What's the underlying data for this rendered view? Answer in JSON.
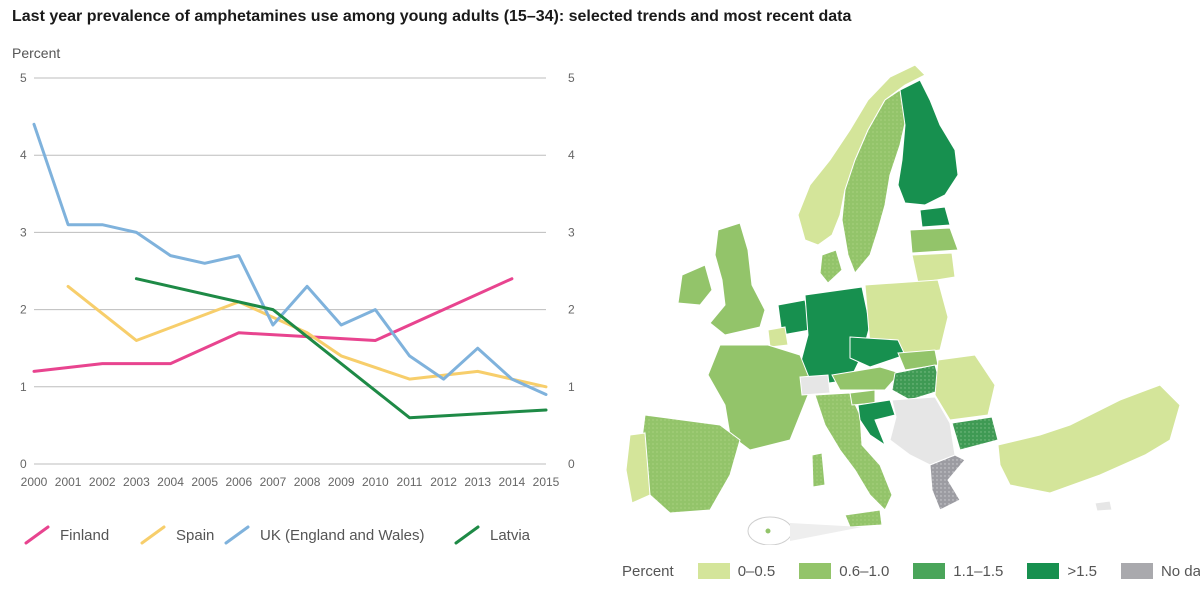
{
  "title": "Last year prevalence of amphetamines use among young adults (15–34): selected trends and most recent data",
  "chart_data": {
    "type": "line",
    "ylabel": "Percent",
    "ylim": [
      0,
      5
    ],
    "yticks": [
      0,
      1,
      2,
      3,
      4,
      5
    ],
    "x": [
      2000,
      2001,
      2002,
      2003,
      2004,
      2005,
      2006,
      2007,
      2008,
      2009,
      2010,
      2011,
      2012,
      2013,
      2014,
      2015
    ],
    "grid": true,
    "legend_position": "bottom",
    "series": [
      {
        "name": "Finland",
        "color": "#e8448f",
        "points": [
          [
            2000,
            1.2
          ],
          [
            2002,
            1.3
          ],
          [
            2004,
            1.3
          ],
          [
            2006,
            1.7
          ],
          [
            2010,
            1.6
          ],
          [
            2014,
            2.4
          ]
        ]
      },
      {
        "name": "Spain",
        "color": "#f7ce6b",
        "points": [
          [
            2001,
            2.3
          ],
          [
            2003,
            1.6
          ],
          [
            2006,
            2.1
          ],
          [
            2008,
            1.7
          ],
          [
            2009,
            1.4
          ],
          [
            2011,
            1.1
          ],
          [
            2013,
            1.2
          ],
          [
            2015,
            1.0
          ]
        ]
      },
      {
        "name": "UK (England and Wales)",
        "color": "#7fb2dc",
        "points": [
          [
            2000,
            4.4
          ],
          [
            2001,
            3.1
          ],
          [
            2002,
            3.1
          ],
          [
            2003,
            3.0
          ],
          [
            2004,
            2.7
          ],
          [
            2005,
            2.6
          ],
          [
            2006,
            2.7
          ],
          [
            2007,
            1.8
          ],
          [
            2008,
            2.3
          ],
          [
            2009,
            1.8
          ],
          [
            2010,
            2.0
          ],
          [
            2011,
            1.4
          ],
          [
            2012,
            1.1
          ],
          [
            2013,
            1.5
          ],
          [
            2014,
            1.1
          ],
          [
            2015,
            0.9
          ]
        ]
      },
      {
        "name": "Latvia",
        "color": "#1e8a46",
        "points": [
          [
            2003,
            2.4
          ],
          [
            2007,
            2.0
          ],
          [
            2011,
            0.6
          ],
          [
            2015,
            0.7
          ]
        ]
      }
    ]
  },
  "map": {
    "legend_title": "Percent",
    "categories": [
      {
        "label": "0–0.5",
        "color": "#d4e59a"
      },
      {
        "label": "0.6–1.0",
        "color": "#93c46a"
      },
      {
        "label": "1.1–1.5",
        "color": "#4aa55a"
      },
      {
        "label": ">1.5",
        "color": "#17904f"
      },
      {
        "label": "No data",
        "color": "#a9a9ad"
      }
    ],
    "unshaded_color": "#e6e6e6"
  }
}
